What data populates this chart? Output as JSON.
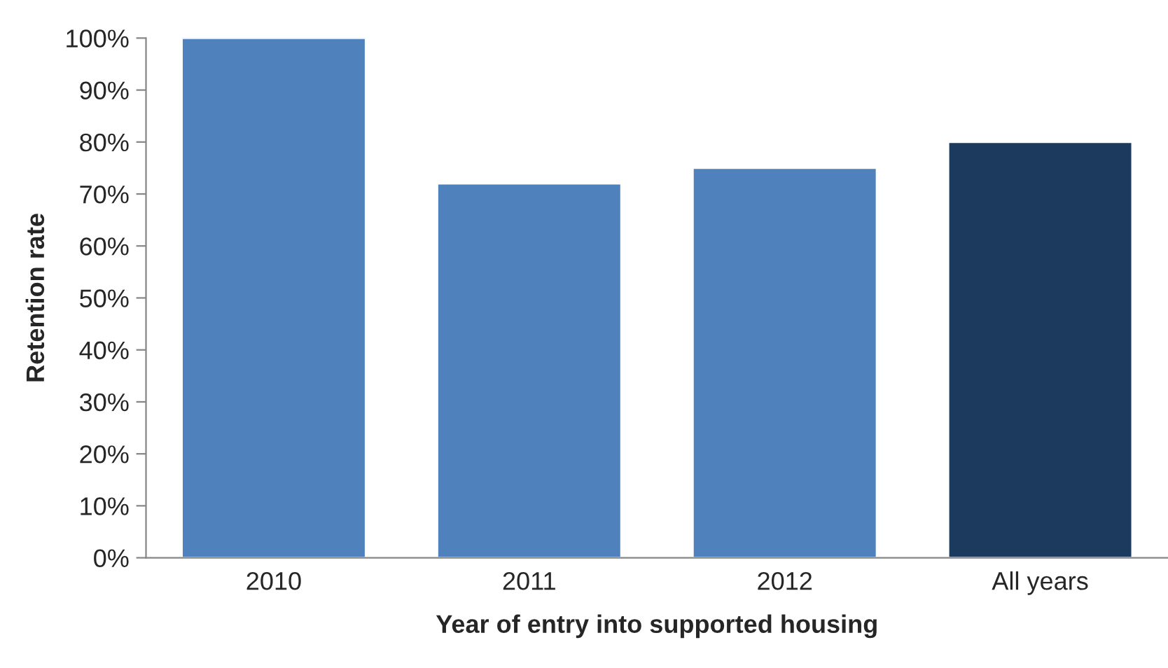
{
  "chart_data": {
    "type": "bar",
    "xlabel": "Year of entry into supported housing",
    "ylabel": "Retention rate",
    "categories": [
      "2010",
      "2011",
      "2012",
      "All years"
    ],
    "values": [
      100,
      72,
      75,
      80
    ],
    "colors": [
      "#4f81bd",
      "#4f81bd",
      "#4f81bd",
      "#1b3a5e"
    ],
    "ylim": [
      0,
      100
    ],
    "yticks": [
      {
        "value": 0,
        "label": "0%"
      },
      {
        "value": 10,
        "label": "10%"
      },
      {
        "value": 20,
        "label": "20%"
      },
      {
        "value": 30,
        "label": "30%"
      },
      {
        "value": 40,
        "label": "40%"
      },
      {
        "value": 50,
        "label": "50%"
      },
      {
        "value": 60,
        "label": "60%"
      },
      {
        "value": 70,
        "label": "70%"
      },
      {
        "value": 80,
        "label": "80%"
      },
      {
        "value": 90,
        "label": "90%"
      },
      {
        "value": 100,
        "label": "100%"
      }
    ],
    "grid": false
  }
}
